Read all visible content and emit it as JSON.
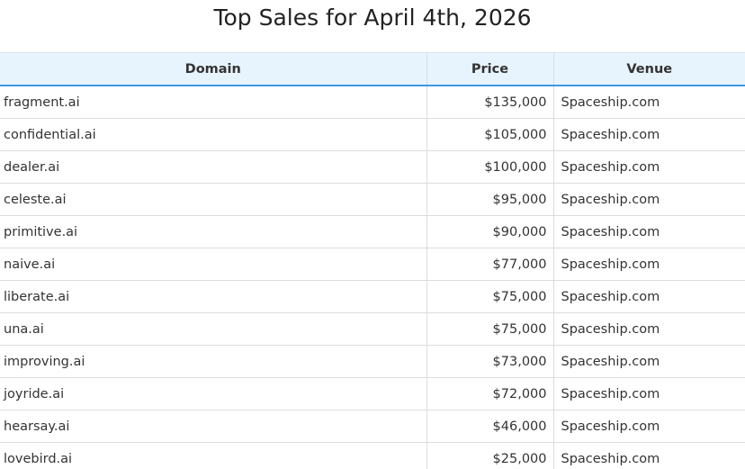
{
  "header": {
    "title": "Top Sales for April 4th, 2026"
  },
  "table": {
    "columns": [
      "Domain",
      "Price",
      "Venue"
    ],
    "rows": [
      [
        "fragment.ai",
        "$135,000",
        "Spaceship.com"
      ],
      [
        "confidential.ai",
        "$105,000",
        "Spaceship.com"
      ],
      [
        "dealer.ai",
        "$100,000",
        "Spaceship.com"
      ],
      [
        "celeste.ai",
        "$95,000",
        "Spaceship.com"
      ],
      [
        "primitive.ai",
        "$90,000",
        "Spaceship.com"
      ],
      [
        "naive.ai",
        "$77,000",
        "Spaceship.com"
      ],
      [
        "liberate.ai",
        "$75,000",
        "Spaceship.com"
      ],
      [
        "una.ai",
        "$75,000",
        "Spaceship.com"
      ],
      [
        "improving.ai",
        "$73,000",
        "Spaceship.com"
      ],
      [
        "joyride.ai",
        "$72,000",
        "Spaceship.com"
      ],
      [
        "hearsay.ai",
        "$46,000",
        "Spaceship.com"
      ],
      [
        "lovebird.ai",
        "$25,000",
        "Spaceship.com"
      ]
    ]
  }
}
